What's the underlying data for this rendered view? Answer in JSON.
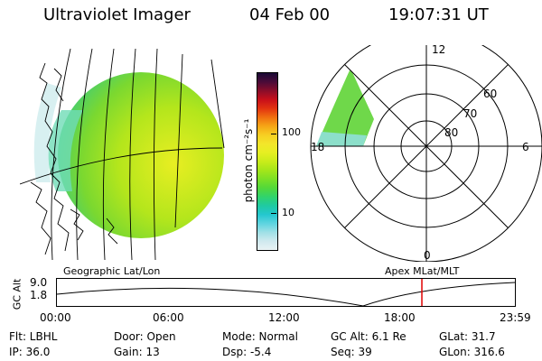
{
  "header": {
    "title": "Ultraviolet Imager",
    "date": "04 Feb 00",
    "time": "19:07:31 UT"
  },
  "colorbar": {
    "unit_label": "photon cm⁻²s⁻¹",
    "tick_labels": [
      "100",
      "10"
    ],
    "colors": [
      "#e9f2f4",
      "#cfe9ee",
      "#9fe0e6",
      "#5ed4e0",
      "#24c7cf",
      "#1fcaa2",
      "#30d36c",
      "#52d83a",
      "#7be026",
      "#a4e61a",
      "#c9ec1a",
      "#e6ef22",
      "#f3e62a",
      "#f7cf22",
      "#f6a616",
      "#f06f10",
      "#e23310",
      "#c80f1a",
      "#8a0d2a",
      "#4a0b38",
      "#1a0a36"
    ]
  },
  "left_panel": {
    "label": "Geographic Lat/Lon"
  },
  "polar": {
    "label": "Apex MLat/MLT",
    "mlt_labels": {
      "top": "12",
      "left": "18",
      "right": "6",
      "bottom": "0"
    },
    "lat_labels": [
      "60",
      "70",
      "80"
    ]
  },
  "timeline": {
    "axis_label": "GC Alt",
    "y_ticks": [
      "9.0",
      "1.8"
    ],
    "x_ticks": [
      "00:00",
      "06:00",
      "12:00",
      "18:00",
      "23:59"
    ],
    "current_marker_hour": 19.125,
    "marker_color": "#e00000"
  },
  "info": {
    "filter": "Flt: LBHL",
    "ip": "IP: 36.0",
    "door": "Door: Open",
    "gain": "Gain: 13",
    "mode": "Mode: Normal",
    "dsp": "Dsp:    -5.4",
    "gc_alt": "GC Alt: 6.1 Re",
    "seq": "Seq: 39",
    "glat": "GLat:  31.7",
    "glon": "GLon: 316.6"
  }
}
